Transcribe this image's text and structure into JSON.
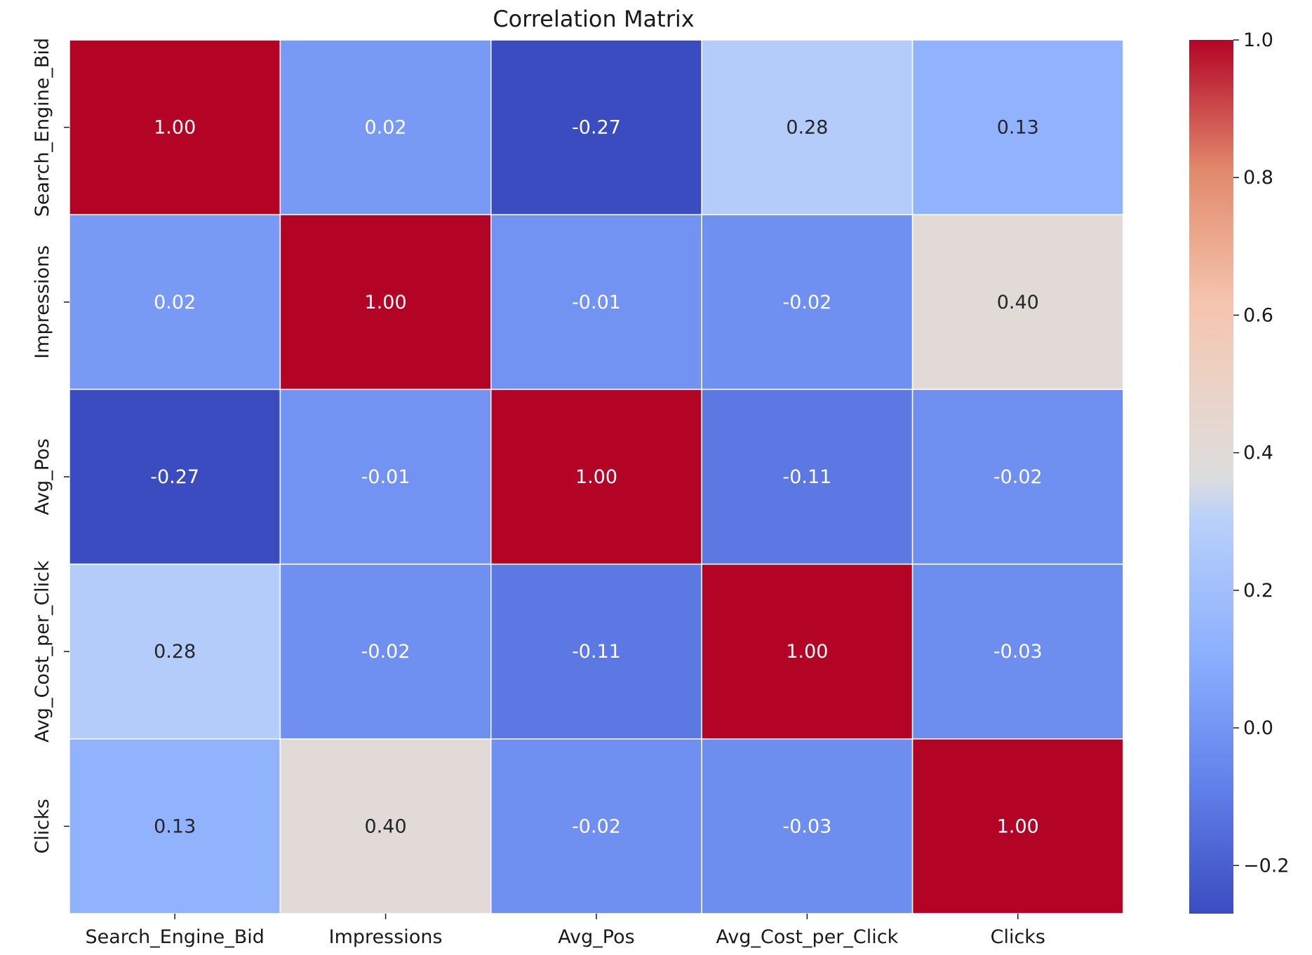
{
  "chart_data": {
    "type": "heatmap",
    "title": "Correlation Matrix",
    "x_categories": [
      "Search_Engine_Bid",
      "Impressions",
      "Avg_Pos",
      "Avg_Cost_per_Click",
      "Clicks"
    ],
    "y_categories": [
      "Search_Engine_Bid",
      "Impressions",
      "Avg_Pos",
      "Avg_Cost_per_Click",
      "Clicks"
    ],
    "values": [
      [
        1.0,
        0.02,
        -0.27,
        0.28,
        0.13
      ],
      [
        0.02,
        1.0,
        -0.01,
        -0.02,
        0.4
      ],
      [
        -0.27,
        -0.01,
        1.0,
        -0.11,
        -0.02
      ],
      [
        0.28,
        -0.02,
        -0.11,
        1.0,
        -0.03
      ],
      [
        0.13,
        0.4,
        -0.02,
        -0.03,
        1.0
      ]
    ],
    "cell_labels": [
      [
        "1.00",
        "0.02",
        "-0.27",
        "0.28",
        "0.13"
      ],
      [
        "0.02",
        "1.00",
        "-0.01",
        "-0.02",
        "0.40"
      ],
      [
        "-0.27",
        "-0.01",
        "1.00",
        "-0.11",
        "-0.02"
      ],
      [
        "0.28",
        "-0.02",
        "-0.11",
        "1.00",
        "-0.03"
      ],
      [
        "0.13",
        "0.40",
        "-0.02",
        "-0.03",
        "1.00"
      ]
    ],
    "colormap": "coolwarm",
    "vmin": -0.27,
    "vmax": 1.0,
    "colorbar_ticks": [
      1.0,
      0.8,
      0.6,
      0.4,
      0.2,
      0.0,
      -0.2
    ],
    "colorbar_tick_labels": [
      "1.0",
      "0.8",
      "0.6",
      "0.4",
      "0.2",
      "0.0",
      "−0.2"
    ],
    "colors": {
      "low": "#3b4cc0",
      "mid": "#dddddd",
      "high": "#b40426",
      "cell_border": "#ffffff",
      "text_light": "#ffffff",
      "text_dark": "#262626"
    }
  }
}
